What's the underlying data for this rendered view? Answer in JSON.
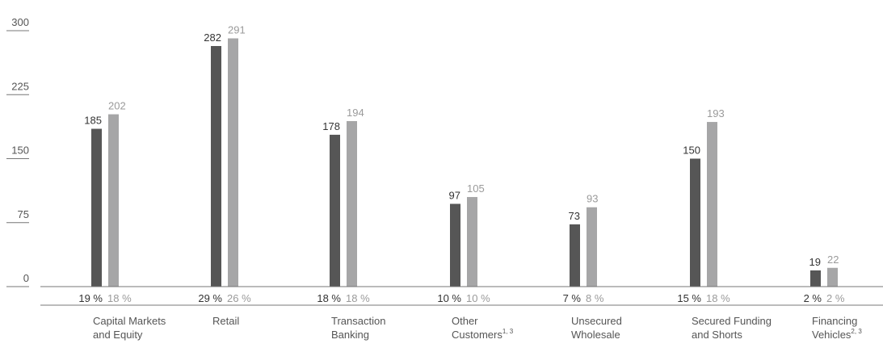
{
  "chart_data": {
    "type": "bar",
    "ylim": [
      0,
      300
    ],
    "yticks": [
      "300",
      "225",
      "150",
      "75",
      "0"
    ],
    "categories": [
      {
        "lines": [
          "Capital Markets",
          "and Equity"
        ],
        "sup": ""
      },
      {
        "lines": [
          "Retail"
        ],
        "sup": ""
      },
      {
        "lines": [
          "Transaction",
          "Banking"
        ],
        "sup": ""
      },
      {
        "lines": [
          "Other",
          "Customers"
        ],
        "sup": "1, 3"
      },
      {
        "lines": [
          "Unsecured",
          "Wholesale"
        ],
        "sup": ""
      },
      {
        "lines": [
          "Secured Funding",
          "and Shorts"
        ],
        "sup": ""
      },
      {
        "lines": [
          "Financing",
          "Vehicles"
        ],
        "sup": "2, 3"
      }
    ],
    "series": [
      {
        "values": [
          185,
          282,
          178,
          97,
          73,
          150,
          19
        ],
        "percent_labels": [
          "19 %",
          "29 %",
          "18 %",
          "10 %",
          "7 %",
          "15 %",
          "2 %"
        ],
        "color": "#565656",
        "label_color": "#333333"
      },
      {
        "values": [
          202,
          291,
          194,
          105,
          93,
          193,
          22
        ],
        "percent_labels": [
          "18 %",
          "26 %",
          "18 %",
          "10 %",
          "8 %",
          "18 %",
          "2 %"
        ],
        "color": "#a6a6a7",
        "label_color": "#9a9a9a"
      }
    ],
    "grid": false,
    "legend": "none"
  }
}
